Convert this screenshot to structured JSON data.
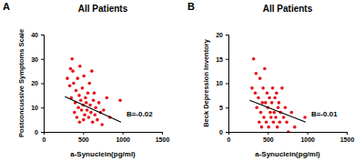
{
  "chart_data": [
    {
      "type": "scatter",
      "panel_label": "A",
      "title": "All Patients",
      "x_label": "a-Synuclein(pg/ml)",
      "y_label": "Postconcussive Symptoms Scale",
      "xlim": [
        0,
        1500
      ],
      "xticks": [
        0,
        500,
        1000,
        1500
      ],
      "ylim": [
        0,
        40
      ],
      "yticks": [
        0,
        10,
        20,
        30,
        40
      ],
      "grid": false,
      "annotations": [
        {
          "text": "B=-0.02"
        }
      ],
      "series": [
        {
          "type": "scatter",
          "color": "#e8141a",
          "marker": "circle",
          "x": [
            300,
            330,
            340,
            350,
            360,
            370,
            380,
            390,
            400,
            410,
            420,
            430,
            440,
            450,
            455,
            460,
            470,
            480,
            490,
            500,
            505,
            510,
            520,
            530,
            540,
            550,
            560,
            570,
            580,
            590,
            600,
            610,
            620,
            630,
            640,
            650,
            660,
            680,
            700,
            720,
            740,
            760,
            800,
            840,
            970
          ],
          "values": [
            22,
            19,
            26,
            14,
            30,
            25,
            20,
            8,
            12,
            17,
            6,
            22,
            10,
            15,
            4,
            27,
            13,
            9,
            18,
            11,
            5,
            23,
            7,
            14,
            12,
            9,
            16,
            6,
            20,
            11,
            8,
            25,
            4,
            13,
            16,
            7,
            10,
            5,
            12,
            8,
            3,
            9,
            14,
            6,
            13
          ]
        },
        {
          "type": "line",
          "color": "#000000",
          "line_style": "solid",
          "x": [
            270,
            980
          ],
          "values": [
            14.5,
            4
          ]
        }
      ]
    },
    {
      "type": "scatter",
      "panel_label": "B",
      "title": "All Patients",
      "x_label": "a-Synuclein(pg/ml)",
      "y_label": "Beck Depression Inventory",
      "xlim": [
        0,
        1500
      ],
      "xticks": [
        0,
        500,
        1000,
        1500
      ],
      "ylim": [
        0,
        20
      ],
      "yticks": [
        0,
        5,
        10,
        15,
        20
      ],
      "grid": false,
      "annotations": [
        {
          "text": "B=-0.01"
        }
      ],
      "series": [
        {
          "type": "scatter",
          "color": "#e8141a",
          "marker": "circle",
          "x": [
            300,
            320,
            340,
            350,
            360,
            380,
            390,
            400,
            410,
            420,
            430,
            440,
            450,
            460,
            470,
            480,
            490,
            500,
            510,
            520,
            530,
            540,
            550,
            560,
            570,
            580,
            590,
            600,
            610,
            620,
            630,
            640,
            650,
            660,
            680,
            700,
            720,
            740,
            760,
            800,
            840,
            970
          ],
          "values": [
            9,
            15,
            8,
            12,
            5,
            7,
            2,
            11,
            4,
            1,
            6,
            9,
            3,
            13,
            6,
            2,
            8,
            5,
            1,
            7,
            4,
            3,
            6,
            9,
            2,
            4,
            7,
            3,
            8,
            1,
            5,
            6,
            2,
            4,
            9,
            3,
            5,
            2,
            0,
            4,
            1,
            3
          ]
        },
        {
          "type": "line",
          "color": "#000000",
          "line_style": "solid",
          "x": [
            270,
            980
          ],
          "values": [
            6.5,
            2
          ]
        }
      ]
    }
  ]
}
